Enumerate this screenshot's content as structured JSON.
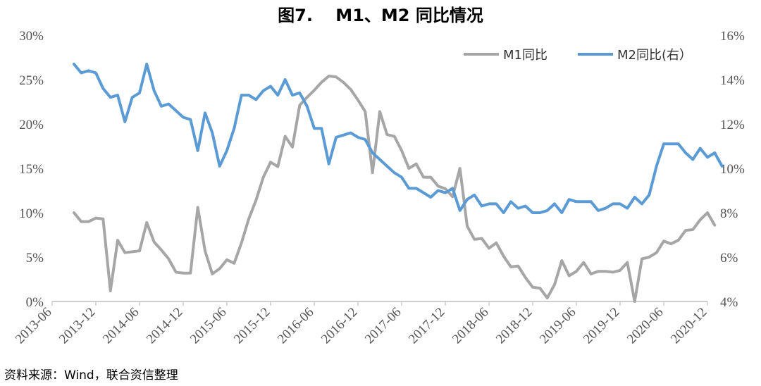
{
  "chart_data": {
    "type": "line",
    "title": "图7.　 M1、M2 同比情况",
    "source": "资料来源：Wind，联合资信整理",
    "x_tick_labels": [
      "2013-06",
      "2013-12",
      "2014-06",
      "2014-12",
      "2015-06",
      "2015-12",
      "2016-06",
      "2016-12",
      "2017-06",
      "2017-12",
      "2018-06",
      "2018-12",
      "2019-06",
      "2019-12",
      "2020-06",
      "2020-12"
    ],
    "x_start": "2013-06",
    "y_left_ticks": [
      "30%",
      "25%",
      "20%",
      "15%",
      "10%",
      "5%",
      "0%"
    ],
    "y_left_lim": [
      0,
      30
    ],
    "y_right_ticks": [
      "16%",
      "14%",
      "12%",
      "10%",
      "8%",
      "6%",
      "4%"
    ],
    "y_right_lim": [
      4,
      16
    ],
    "legend_position": "top-right",
    "series": [
      {
        "name": "M1同比",
        "axis": "left",
        "color": "#a6a6a6",
        "start": "2013-09",
        "values": [
          10.0,
          9.0,
          9.0,
          9.4,
          9.3,
          1.2,
          6.9,
          5.5,
          5.6,
          5.7,
          8.9,
          6.7,
          5.8,
          4.8,
          3.3,
          3.2,
          3.2,
          10.6,
          5.7,
          3.1,
          3.7,
          4.7,
          4.3,
          6.6,
          9.3,
          11.4,
          14.0,
          15.7,
          15.2,
          18.6,
          17.4,
          22.1,
          23.0,
          23.8,
          24.7,
          25.4,
          25.3,
          24.7,
          23.9,
          22.7,
          21.4,
          14.5,
          21.4,
          18.8,
          18.6,
          17.0,
          15.0,
          15.5,
          14.0,
          14.0,
          13.0,
          12.7,
          11.8,
          15.0,
          8.5,
          7.0,
          7.1,
          6.0,
          6.6,
          5.1,
          3.9,
          4.0,
          2.7,
          1.6,
          1.5,
          0.4,
          1.9,
          4.6,
          2.9,
          3.4,
          4.4,
          3.1,
          3.4,
          3.4,
          3.3,
          3.5,
          4.4,
          0.0,
          4.8,
          5.0,
          5.5,
          6.8,
          6.5,
          6.9,
          8.0,
          8.1,
          9.2,
          10.0,
          8.6
        ]
      },
      {
        "name": "M2同比(右）",
        "axis": "right",
        "color": "#5b9bd5",
        "start": "2013-09",
        "values": [
          14.7,
          14.3,
          14.4,
          14.3,
          13.6,
          13.2,
          13.3,
          12.1,
          13.2,
          13.4,
          14.7,
          13.5,
          12.8,
          12.9,
          12.6,
          12.3,
          12.2,
          10.8,
          12.5,
          11.6,
          10.1,
          10.8,
          11.8,
          13.3,
          13.3,
          13.1,
          13.5,
          13.7,
          13.3,
          14.0,
          13.3,
          13.4,
          12.8,
          11.8,
          11.8,
          10.2,
          11.4,
          11.5,
          11.6,
          11.4,
          11.3,
          10.7,
          10.4,
          10.1,
          9.8,
          9.6,
          9.1,
          9.1,
          8.9,
          8.7,
          9.0,
          8.9,
          9.1,
          8.1,
          8.6,
          8.8,
          8.3,
          8.4,
          8.4,
          8.0,
          8.5,
          8.2,
          8.3,
          8.0,
          8.0,
          8.1,
          8.4,
          8.0,
          8.6,
          8.5,
          8.5,
          8.5,
          8.1,
          8.2,
          8.4,
          8.4,
          8.2,
          8.7,
          8.4,
          8.8,
          10.1,
          11.1,
          11.1,
          11.1,
          10.7,
          10.4,
          10.9,
          10.5,
          10.7,
          10.1
        ]
      }
    ]
  }
}
